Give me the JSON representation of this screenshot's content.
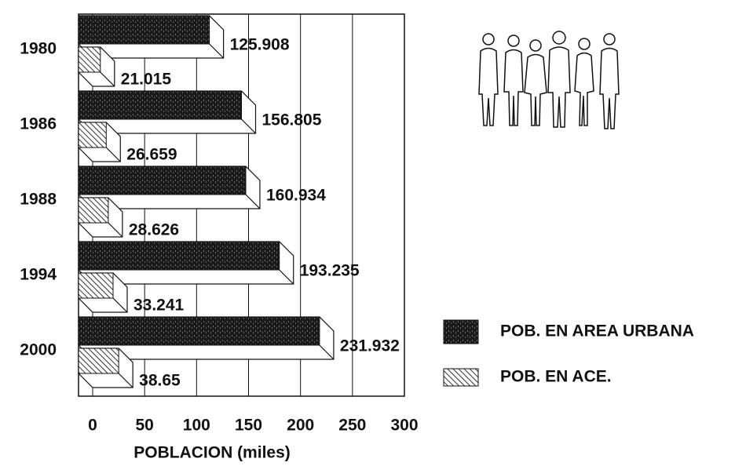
{
  "chart_data": {
    "type": "bar3d_horizontal",
    "categories": [
      "1980",
      "1986",
      "1988",
      "1994",
      "2000"
    ],
    "series": [
      {
        "name": "POB. EN AREA URBANA",
        "color": "#1a1a1a",
        "values": [
          125.908,
          156.805,
          160.934,
          193.235,
          231.932
        ]
      },
      {
        "name": "POB. EN ACE.",
        "color": "#555555",
        "values": [
          21.015,
          26.659,
          28.626,
          33.241,
          38.65
        ]
      }
    ],
    "xlabel": "POBLACION (miles)",
    "xlim": [
      0,
      300
    ],
    "xticks": [
      0,
      50,
      100,
      150,
      200,
      250,
      300
    ],
    "grid": true,
    "legend": "right"
  }
}
